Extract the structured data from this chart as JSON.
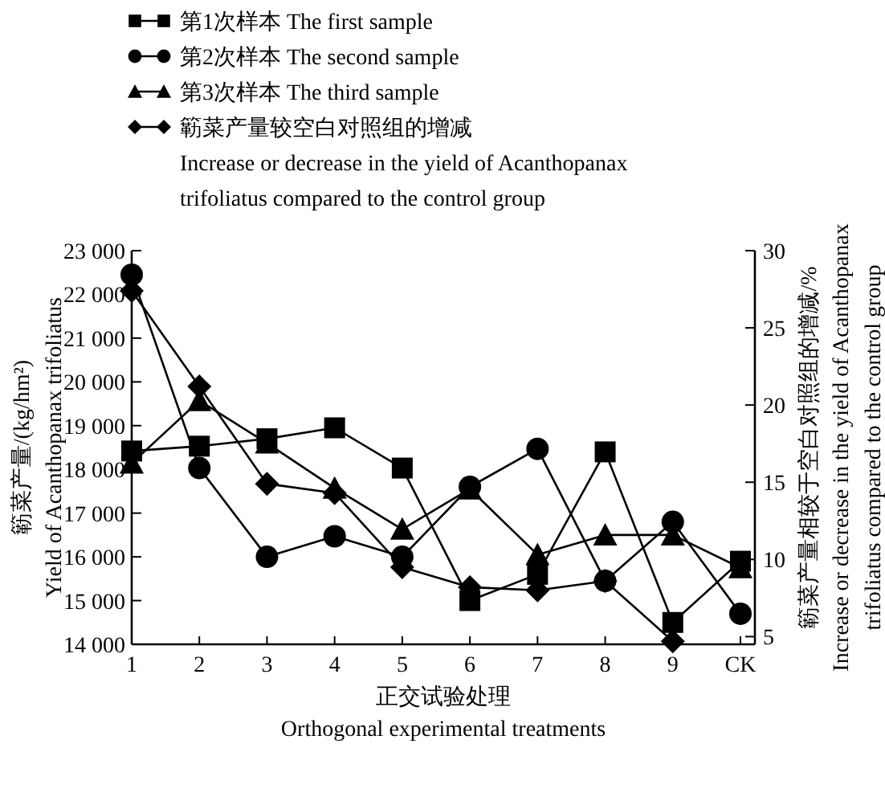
{
  "chart_data": {
    "type": "line",
    "categories": [
      "1",
      "2",
      "3",
      "4",
      "5",
      "6",
      "7",
      "8",
      "9",
      "CK"
    ],
    "series": [
      {
        "name": "第1次样本 The first sample",
        "color": "#000000",
        "marker": "square",
        "values": [
          18420,
          18530,
          18700,
          18950,
          18030,
          15000,
          15600,
          18400,
          14500,
          15900
        ]
      },
      {
        "name": "第2次样本 The second sample",
        "color": "#000000",
        "marker": "circle",
        "values": [
          22450,
          18030,
          16000,
          16470,
          16000,
          17600,
          18470,
          15450,
          16800,
          14700
        ]
      },
      {
        "name": "第3次样本 The third sample",
        "color": "#000000",
        "marker": "triangle",
        "values": [
          18140,
          19570,
          18600,
          17570,
          16630,
          17550,
          16050,
          16500,
          16500,
          15750
        ]
      },
      {
        "name": "簕菜产量较空白对照组的增减\nIncrease or decrease in the yield of Acanthopanax\ntrifoliatus compared to the control group",
        "color": "#000000",
        "marker": "diamond",
        "axis": "y2",
        "values": [
          27.4,
          21.2,
          14.9,
          14.3,
          9.5,
          8.2,
          8.0,
          8.6,
          4.7,
          null
        ]
      }
    ],
    "ylabel": "簕菜产量/(kg/hm²)\nYield of Acanthopanax trifoliatus",
    "y2label": "簕菜产量相较于空白对照组的增减/%\nIncrease or decrease in the yield of Acanthopanax\ntrifoliatus compared to the control group",
    "xlabel": "正交试验处理\nOrthogonal experimental treatments",
    "ylim": [
      14000,
      23000
    ],
    "yticks": [
      {
        "value": 14000,
        "label": "14 000"
      },
      {
        "value": 15000,
        "label": "15 000"
      },
      {
        "value": 16000,
        "label": "16 000"
      },
      {
        "value": 17000,
        "label": "17 000"
      },
      {
        "value": 18000,
        "label": "18 000"
      },
      {
        "value": 19000,
        "label": "19 000"
      },
      {
        "value": 20000,
        "label": "20 000"
      },
      {
        "value": 21000,
        "label": "21 000"
      },
      {
        "value": 22000,
        "label": "22 000"
      },
      {
        "value": 23000,
        "label": "23 000"
      }
    ],
    "y2lim": [
      4.5,
      30
    ],
    "y2ticks": [
      5,
      10,
      15,
      20,
      25,
      30
    ],
    "legend": "top",
    "grid": false,
    "line_style": "solid"
  }
}
